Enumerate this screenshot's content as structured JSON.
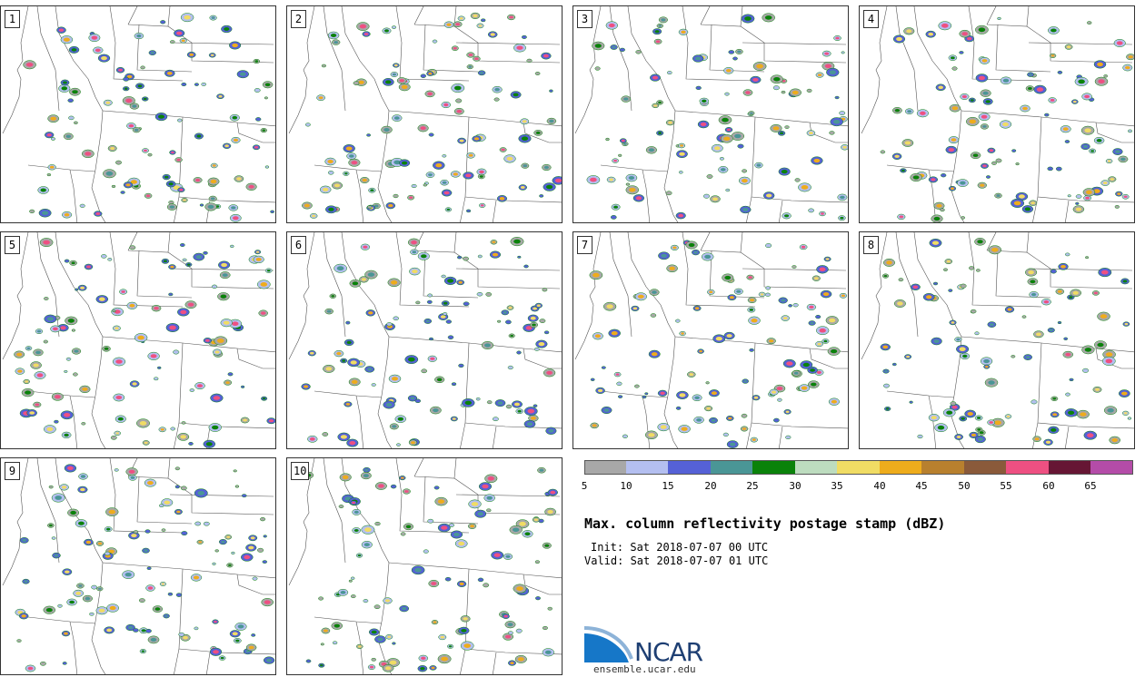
{
  "panels": [
    {
      "number": "1"
    },
    {
      "number": "2"
    },
    {
      "number": "3"
    },
    {
      "number": "4"
    },
    {
      "number": "5"
    },
    {
      "number": "6"
    },
    {
      "number": "7"
    },
    {
      "number": "8"
    },
    {
      "number": "9"
    },
    {
      "number": "10"
    }
  ],
  "colorbar": {
    "ticks": [
      "5",
      "10",
      "15",
      "20",
      "25",
      "30",
      "35",
      "40",
      "45",
      "50",
      "55",
      "60",
      "65"
    ],
    "colors": [
      "#a8a8a8",
      "#b4bff0",
      "#5561d6",
      "#4a9696",
      "#0a820a",
      "#bddcbf",
      "#f0dc64",
      "#eeac1c",
      "#b8802e",
      "#8a5a3a",
      "#ee5082",
      "#661634",
      "#b44ca8"
    ]
  },
  "title": "Max. column reflectivity postage stamp (dBZ)",
  "init": "Init: Sat 2018-07-07 00 UTC",
  "valid": "Valid: Sat 2018-07-07 01 UTC",
  "logo": {
    "word": "NCAR",
    "url": "ensemble.ucar.edu"
  }
}
